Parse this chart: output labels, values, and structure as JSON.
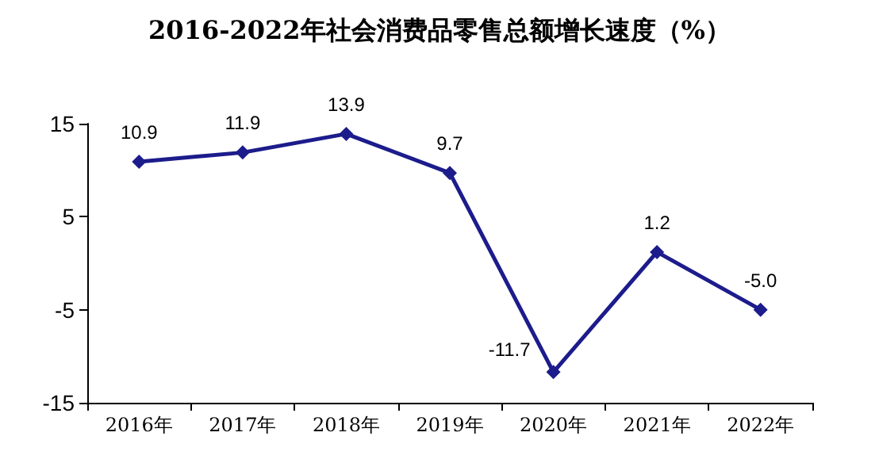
{
  "chart_data": {
    "type": "line",
    "title": "2016-2022年社会消费品零售总额增长速度（%）",
    "categories": [
      "2016年",
      "2017年",
      "2018年",
      "2019年",
      "2020年",
      "2021年",
      "2022年"
    ],
    "series": [
      {
        "color": "#1c1c8c",
        "values": [
          10.9,
          11.9,
          13.9,
          9.7,
          -11.7,
          1.2,
          -5.0
        ],
        "value_labels": [
          "10.9",
          "11.9",
          "13.9",
          "9.7",
          "-11.7",
          "1.2",
          "-5.0"
        ]
      }
    ],
    "ylim": [
      -15,
      15
    ],
    "yticks": [
      -15,
      -5,
      5,
      15
    ],
    "grid": false,
    "marker": "diamond",
    "line_style": "solid"
  }
}
